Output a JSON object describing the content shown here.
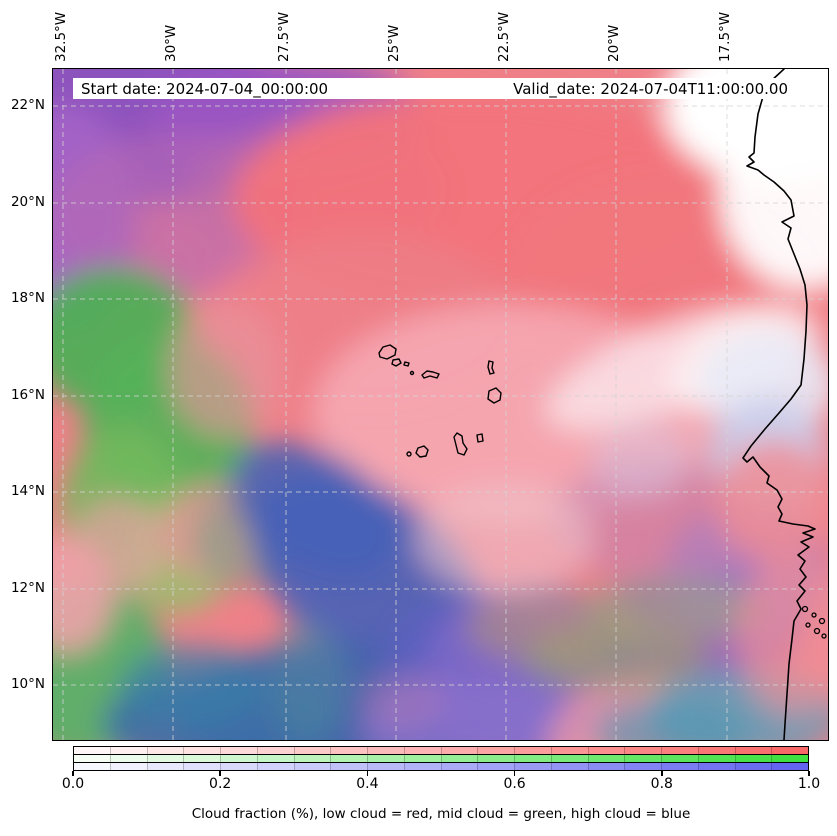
{
  "title_band": {
    "start_date": "Start date: 2024-07-04_00:00:00",
    "valid_date": "Valid_date: 2024-07-04T11:00:00.00"
  },
  "axes": {
    "x_tick_labels": [
      "32.5°W",
      "30°W",
      "27.5°W",
      "25°W",
      "22.5°W",
      "20°W",
      "17.5°W"
    ],
    "y_tick_labels": [
      "22°N",
      "20°N",
      "18°N",
      "16°N",
      "14°N",
      "12°N",
      "10°N"
    ]
  },
  "colorbar": {
    "tick_labels": [
      "0.0",
      "0.2",
      "0.4",
      "0.6",
      "0.8",
      "1.0"
    ],
    "segments": 20,
    "channels": [
      {
        "name": "low-cloud",
        "color_name": "red",
        "color": "#f96868"
      },
      {
        "name": "mid-cloud",
        "color_name": "green",
        "color": "#3fe03f"
      },
      {
        "name": "high-cloud",
        "color_name": "blue",
        "color": "#6464f0"
      }
    ],
    "caption": "Cloud fraction (%), low cloud = red, mid cloud = green, high cloud = blue"
  },
  "chart_data": {
    "type": "heatmap",
    "title": "",
    "subtitle_left": "Start date: 2024-07-04_00:00:00",
    "subtitle_right": "Valid_date: 2024-07-04T11:00:00.00",
    "encoding": "RGB composite of cloud fraction: red channel = low cloud, green channel = mid cloud, blue channel = high cloud",
    "x_axis": {
      "label": "longitude",
      "tick_labels": [
        "32.5°W",
        "30°W",
        "27.5°W",
        "25°W",
        "22.5°W",
        "20°W",
        "17.5°W"
      ],
      "approx_range": [
        "33.0°W",
        "15.2°W"
      ]
    },
    "y_axis": {
      "label": "latitude",
      "tick_labels": [
        "22°N",
        "20°N",
        "18°N",
        "16°N",
        "14°N",
        "12°N",
        "10°N"
      ],
      "approx_range": [
        "8.9°N",
        "22.8°N"
      ]
    },
    "colorbar": {
      "label": "Cloud fraction (%), low cloud = red, mid cloud = green, high cloud = blue",
      "ticks": [
        0.0,
        0.2,
        0.4,
        0.6,
        0.8,
        1.0
      ],
      "range": [
        0,
        1
      ],
      "legend_position": "bottom",
      "grid": "dashed graticule every 2.5° lon / 2° lat"
    },
    "regions": [
      {
        "area": "northwest (28-33°W, 19-23°N)",
        "reading": "high+low cloud mix (purple)"
      },
      {
        "area": "north-central (18-28°W, 16-22°N)",
        "reading": "mostly low cloud (salmon red ~0.5-0.7)"
      },
      {
        "area": "northeast corner / coastal Mauritania (15-17.5°W, 20-23°N)",
        "reading": "clear, near 0 (white)"
      },
      {
        "area": "west edge (31-33°W, 12-17°N)",
        "reading": "mid cloud (green)"
      },
      {
        "area": "southwest diagonal band (26-31°W, 9-14°N)",
        "reading": "high+mid cloud (deep blue)"
      },
      {
        "area": "south-central (20-26°W, 9-13°N)",
        "reading": "high cloud with low mix (violet/purple)"
      },
      {
        "area": "band near 11-13°N east of 24°W",
        "reading": "low+mid mix (olive/tan streaks)"
      },
      {
        "area": "around Cape Verde islands (22-26°W, 14-17°N)",
        "reading": "light low cloud (pale pink)"
      },
      {
        "area": "Senegal/Gambia coast (16-18°W, 12-16°N)",
        "reading": "low cloud inland, high cloud lavender patches offshore"
      }
    ],
    "map_features": [
      "Cape Verde archipelago outlines",
      "West African coastline: Mauritania, Senegal (Cap-Vert peninsula), Gambia river mouth, Casamance islets"
    ]
  }
}
